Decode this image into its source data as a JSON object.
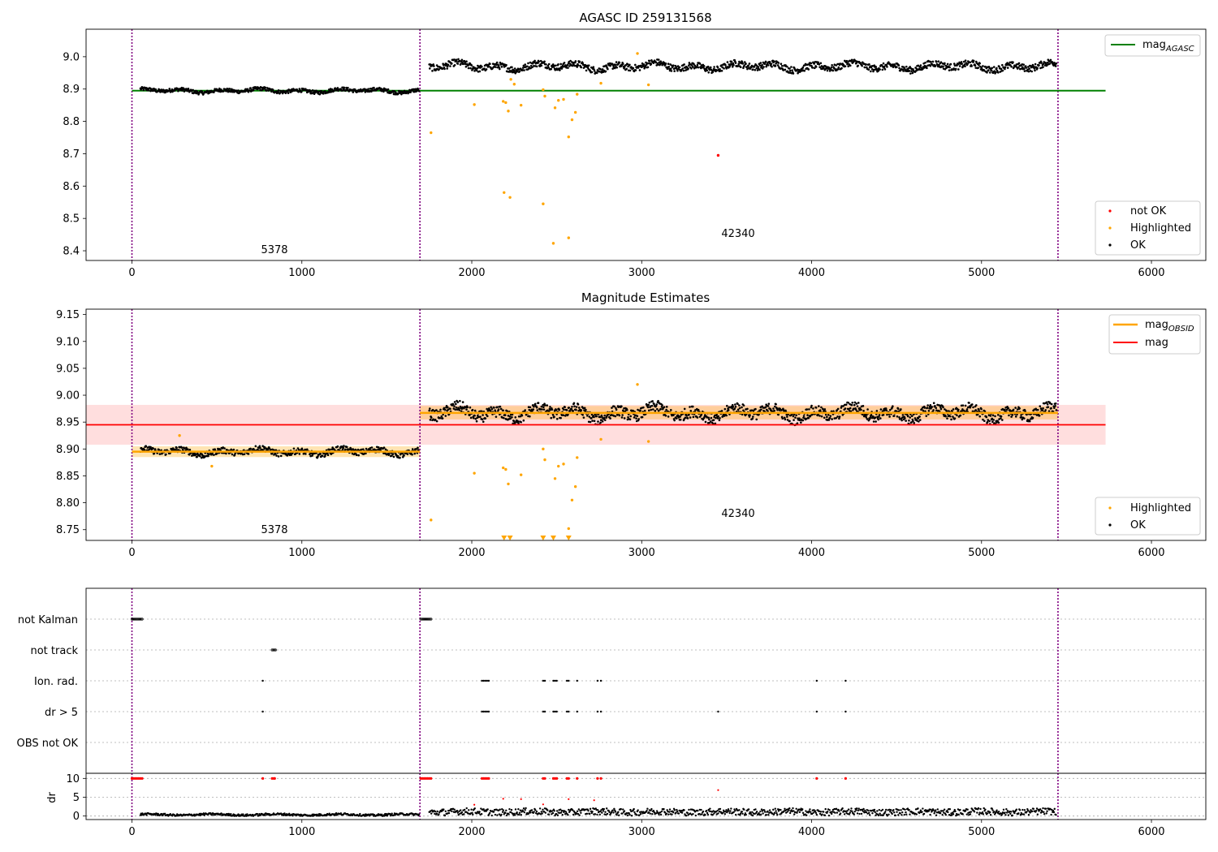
{
  "chart_data": [
    {
      "type": "scatter",
      "title": "AGASC ID 259131568",
      "xlim": [
        -270,
        6320
      ],
      "ylim": [
        8.37,
        9.085
      ],
      "xticks": [
        0,
        1000,
        2000,
        3000,
        4000,
        5000,
        6000
      ],
      "yticks": [
        8.4,
        8.5,
        8.6,
        8.7,
        8.8,
        8.9,
        9.0
      ],
      "xtick_labels": [
        "0",
        "1000",
        "2000",
        "3000",
        "4000",
        "5000",
        "6000"
      ],
      "ytick_labels": [
        "8.4",
        "8.5",
        "8.6",
        "8.7",
        "8.8",
        "8.9",
        "9.0"
      ],
      "obs_boundaries": [
        0,
        1695,
        5450
      ],
      "annotations": [
        {
          "text": "5378",
          "x": 840,
          "y": 8.39
        },
        {
          "text": "42340",
          "x": 3560,
          "y": 8.44
        }
      ],
      "series": [
        {
          "name": "mag_AGASC",
          "kind": "hline",
          "y": 8.895,
          "x_range": [
            0,
            5730
          ],
          "color": "#008000"
        },
        {
          "name": "OK",
          "kind": "dots",
          "color": "#000000",
          "segments": [
            {
              "x_range": [
                50,
                1690
              ],
              "level": 8.895,
              "wiggle": 0.008
            },
            {
              "x_range": [
                1750,
                5440
              ],
              "level": 8.97,
              "wiggle": 0.015
            }
          ]
        },
        {
          "name": "Highlighted",
          "kind": "points",
          "color": "#ffa500",
          "x": [
            1760,
            2015,
            2185,
            2200,
            2215,
            2230,
            2250,
            2290,
            2420,
            2430,
            2490,
            2510,
            2540,
            2570,
            2590,
            2610,
            2620,
            2190,
            2225,
            2420,
            2570,
            2480,
            2760,
            3040,
            2975
          ],
          "y": [
            8.765,
            8.852,
            8.862,
            8.858,
            8.832,
            8.93,
            8.915,
            8.85,
            8.898,
            8.878,
            8.842,
            8.865,
            8.868,
            8.752,
            8.805,
            8.828,
            8.884,
            8.58,
            8.565,
            8.545,
            8.44,
            8.423,
            8.918,
            8.913,
            9.01
          ]
        },
        {
          "name": "not OK",
          "kind": "points",
          "color": "#ff0000",
          "x": [
            3450
          ],
          "y": [
            8.695
          ]
        }
      ],
      "legend": {
        "top_right": [
          {
            "label": "mag",
            "sub": "AGASC",
            "kind": "line",
            "color": "#008000"
          }
        ],
        "bottom_right": [
          {
            "label": "not OK",
            "kind": "dot",
            "color": "#ff0000"
          },
          {
            "label": "Highlighted",
            "kind": "dot",
            "color": "#ffa500"
          },
          {
            "label": "OK",
            "kind": "dot",
            "color": "#000000"
          }
        ]
      }
    },
    {
      "type": "scatter",
      "title": "Magnitude Estimates",
      "xlim": [
        -270,
        6320
      ],
      "ylim": [
        8.73,
        9.16
      ],
      "xticks": [
        0,
        1000,
        2000,
        3000,
        4000,
        5000,
        6000
      ],
      "yticks": [
        8.75,
        8.8,
        8.85,
        8.9,
        8.95,
        9.0,
        9.05,
        9.1,
        9.15
      ],
      "xtick_labels": [
        "0",
        "1000",
        "2000",
        "3000",
        "4000",
        "5000",
        "6000"
      ],
      "ytick_labels": [
        "8.75",
        "8.80",
        "8.85",
        "8.90",
        "8.95",
        "9.00",
        "9.05",
        "9.10",
        "9.15"
      ],
      "obs_boundaries": [
        0,
        1695,
        5450
      ],
      "annotations": [
        {
          "text": "5378",
          "x": 840,
          "y": 8.74
        },
        {
          "text": "42340",
          "x": 3560,
          "y": 8.774
        }
      ],
      "mag": {
        "value": 8.945,
        "band": [
          8.908,
          8.982
        ],
        "x_range": [
          -270,
          5730
        ],
        "color": "#ff0000"
      },
      "mag_obsid": [
        {
          "x_range": [
            0,
            1695
          ],
          "value": 8.895,
          "band": [
            8.885,
            8.905
          ]
        },
        {
          "x_range": [
            1695,
            5450
          ],
          "value": 8.967,
          "band": [
            8.955,
            8.98
          ]
        }
      ],
      "series": [
        {
          "name": "OK",
          "kind": "dots",
          "color": "#000000",
          "segments": [
            {
              "x_range": [
                50,
                1690
              ],
              "level": 8.895,
              "wiggle": 0.008
            },
            {
              "x_range": [
                1750,
                5440
              ],
              "level": 8.967,
              "wiggle": 0.015
            }
          ]
        },
        {
          "name": "Highlighted",
          "kind": "points",
          "color": "#ffa500",
          "x": [
            1760,
            2015,
            2185,
            2200,
            2215,
            2290,
            2420,
            2430,
            2490,
            2510,
            2540,
            2570,
            2590,
            2610,
            2620,
            2760,
            3040,
            2975,
            280,
            470
          ],
          "y": [
            8.768,
            8.855,
            8.865,
            8.862,
            8.835,
            8.852,
            8.9,
            8.88,
            8.845,
            8.868,
            8.872,
            8.752,
            8.805,
            8.83,
            8.884,
            8.918,
            8.914,
            9.02,
            8.925,
            8.868
          ]
        },
        {
          "name": "Highlighted (off-scale)",
          "kind": "down-triangles",
          "color": "#ffa500",
          "x": [
            2190,
            2225,
            2420,
            2480,
            2570
          ]
        }
      ],
      "legend": {
        "top_right": [
          {
            "label": "mag",
            "sub": "OBSID",
            "kind": "line",
            "color": "#ffa500"
          },
          {
            "label": "mag",
            "sub": "",
            "kind": "line",
            "color": "#ff0000"
          }
        ],
        "bottom_right": [
          {
            "label": "Highlighted",
            "kind": "dot",
            "color": "#ffa500"
          },
          {
            "label": "OK",
            "kind": "dot",
            "color": "#000000"
          }
        ]
      }
    },
    {
      "type": "scatter",
      "title": "",
      "xlim": [
        -270,
        6320
      ],
      "xticks": [
        0,
        1000,
        2000,
        3000,
        4000,
        5000,
        6000
      ],
      "xtick_labels": [
        "0",
        "1000",
        "2000",
        "3000",
        "4000",
        "5000",
        "6000"
      ],
      "obs_boundaries": [
        0,
        1695,
        5450
      ],
      "flag_rows": [
        "not Kalman",
        "not track",
        "Ion. rad.",
        "dr > 5",
        "OBS not OK"
      ],
      "flags": {
        "not Kalman": {
          "x_ranges": [
            [
              0,
              60
            ],
            [
              1700,
              1760
            ]
          ]
        },
        "not track": {
          "x_ranges": [
            [
              825,
              845
            ]
          ]
        },
        "Ion. rad.": {
          "x": [
            770,
            2060,
            2070,
            2080,
            2090,
            2100,
            2420,
            2430,
            2480,
            2490,
            2500,
            2560,
            2570,
            2620,
            2740,
            2760,
            4030,
            4200
          ]
        },
        "dr > 5": {
          "x": [
            770,
            2060,
            2070,
            2080,
            2090,
            2100,
            2420,
            2430,
            2480,
            2490,
            2500,
            2560,
            2570,
            2620,
            2740,
            2760,
            3450,
            4030,
            4200
          ]
        },
        "OBS not OK": {
          "x": []
        }
      },
      "dr": {
        "ylabel": "dr",
        "ylim": [
          -0.5,
          10.5
        ],
        "yticks": [
          0,
          5,
          10
        ],
        "ytick_labels": [
          "0",
          "5",
          "10"
        ],
        "ok_segments": [
          {
            "x_range": [
              50,
              1690
            ],
            "level": 0.35
          },
          {
            "x_range": [
              1750,
              5440
            ],
            "level": 1.1
          }
        ],
        "capped_red_x": [
          0,
          10,
          20,
          30,
          40,
          50,
          60,
          770,
          825,
          835,
          840,
          1700,
          1710,
          1720,
          1730,
          1740,
          1750,
          1760,
          2060,
          2070,
          2080,
          2090,
          2100,
          2420,
          2430,
          2480,
          2490,
          2500,
          2560,
          2570,
          2620,
          2740,
          2760,
          4030,
          4200
        ],
        "other_red": {
          "x": [
            2015,
            2185,
            2290,
            2420,
            2570,
            2720,
            3450
          ],
          "y": [
            3.0,
            4.6,
            4.5,
            3.1,
            4.5,
            4.2,
            6.9
          ]
        }
      }
    }
  ]
}
